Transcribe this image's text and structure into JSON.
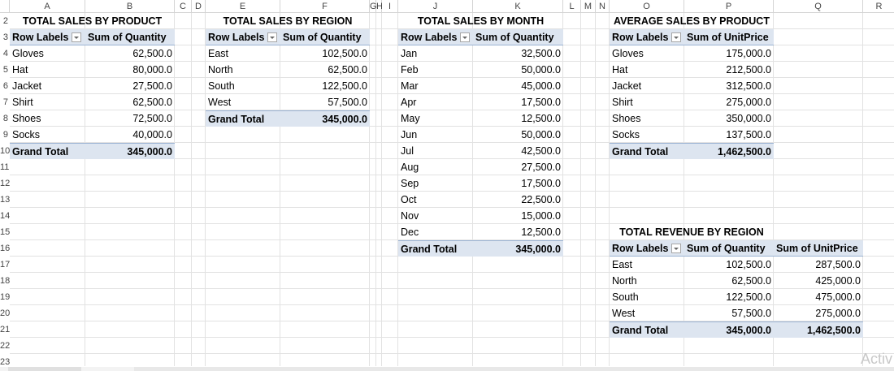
{
  "columns": [
    "A",
    "B",
    "C",
    "D",
    "E",
    "F",
    "G",
    "H",
    "I",
    "J",
    "K",
    "L",
    "M",
    "N",
    "O",
    "P",
    "Q",
    "R"
  ],
  "rows": [
    "2",
    "3",
    "4",
    "5",
    "6",
    "7",
    "8",
    "9",
    "10",
    "11",
    "12",
    "13",
    "14",
    "15",
    "16",
    "17",
    "18",
    "19",
    "20",
    "21",
    "22",
    "23"
  ],
  "product_sales": {
    "title": "TOTAL SALES BY PRODUCT",
    "header_label": "Row Labels",
    "header_value": "Sum of Quantity",
    "rows": [
      {
        "label": "Gloves",
        "value": "62,500.0"
      },
      {
        "label": "Hat",
        "value": "80,000.0"
      },
      {
        "label": "Jacket",
        "value": "27,500.0"
      },
      {
        "label": "Shirt",
        "value": "62,500.0"
      },
      {
        "label": "Shoes",
        "value": "72,500.0"
      },
      {
        "label": "Socks",
        "value": "40,000.0"
      }
    ],
    "total_label": "Grand Total",
    "total_value": "345,000.0"
  },
  "region_sales": {
    "title": "TOTAL SALES BY REGION",
    "header_label": "Row Labels",
    "header_value": "Sum of Quantity",
    "rows": [
      {
        "label": "East",
        "value": "102,500.0"
      },
      {
        "label": "North",
        "value": "62,500.0"
      },
      {
        "label": "South",
        "value": "122,500.0"
      },
      {
        "label": "West",
        "value": "57,500.0"
      }
    ],
    "total_label": "Grand Total",
    "total_value": "345,000.0"
  },
  "month_sales": {
    "title": "TOTAL SALES BY MONTH",
    "header_label": "Row Labels",
    "header_value": "Sum of Quantity",
    "rows": [
      {
        "label": "Jan",
        "value": "32,500.0"
      },
      {
        "label": "Feb",
        "value": "50,000.0"
      },
      {
        "label": "Mar",
        "value": "45,000.0"
      },
      {
        "label": "Apr",
        "value": "17,500.0"
      },
      {
        "label": "May",
        "value": "12,500.0"
      },
      {
        "label": "Jun",
        "value": "50,000.0"
      },
      {
        "label": "Jul",
        "value": "42,500.0"
      },
      {
        "label": "Aug",
        "value": "27,500.0"
      },
      {
        "label": "Sep",
        "value": "17,500.0"
      },
      {
        "label": "Oct",
        "value": "22,500.0"
      },
      {
        "label": "Nov",
        "value": "15,000.0"
      },
      {
        "label": "Dec",
        "value": "12,500.0"
      }
    ],
    "total_label": "Grand Total",
    "total_value": "345,000.0"
  },
  "avg_product": {
    "title": "AVERAGE SALES BY PRODUCT",
    "header_label": "Row Labels",
    "header_value": "Sum of UnitPrice",
    "rows": [
      {
        "label": "Gloves",
        "value": "175,000.0"
      },
      {
        "label": "Hat",
        "value": "212,500.0"
      },
      {
        "label": "Jacket",
        "value": "312,500.0"
      },
      {
        "label": "Shirt",
        "value": "275,000.0"
      },
      {
        "label": "Shoes",
        "value": "350,000.0"
      },
      {
        "label": "Socks",
        "value": "137,500.0"
      }
    ],
    "total_label": "Grand Total",
    "total_value": "1,462,500.0"
  },
  "revenue_region": {
    "title": "TOTAL REVENUE BY REGION",
    "header_label": "Row Labels",
    "header_qty": "Sum of Quantity",
    "header_price": "Sum of UnitPrice",
    "rows": [
      {
        "label": "East",
        "qty": "102,500.0",
        "price": "287,500.0"
      },
      {
        "label": "North",
        "qty": "62,500.0",
        "price": "425,000.0"
      },
      {
        "label": "South",
        "qty": "122,500.0",
        "price": "475,000.0"
      },
      {
        "label": "West",
        "qty": "57,500.0",
        "price": "275,000.0"
      }
    ],
    "total_label": "Grand Total",
    "total_qty": "345,000.0",
    "total_price": "1,462,500.0"
  },
  "watermark": "Activ"
}
